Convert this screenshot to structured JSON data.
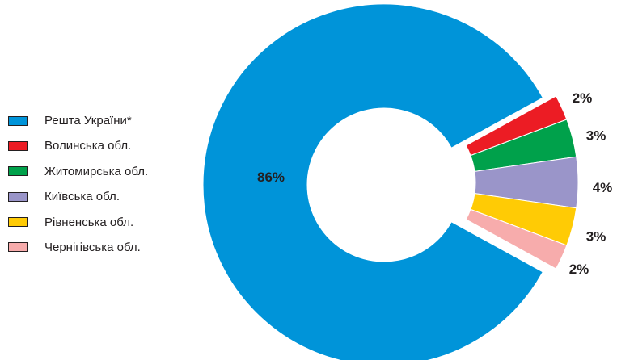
{
  "chart_data": {
    "type": "pie",
    "title": "",
    "categories": [
      "Решта України*",
      "Волинська обл.",
      "Житомирська обл.",
      "Київська обл.",
      "Рівненська обл.",
      "Чернігівська обл."
    ],
    "values": [
      86,
      2,
      3,
      4,
      3,
      2
    ],
    "labels": [
      "86%",
      "2%",
      "3%",
      "4%",
      "3%",
      "2%"
    ],
    "colors": [
      "#0094d9",
      "#ec1c24",
      "#00a14b",
      "#9a95c9",
      "#ffcb05",
      "#f7acac"
    ],
    "donut": true,
    "exploded_slices": [
      1,
      2,
      3,
      4,
      5
    ],
    "legend_position": "left"
  },
  "legend": [
    {
      "label": "Решта України*",
      "color": "#0094d9"
    },
    {
      "label": "Волинська обл.",
      "color": "#ec1c24"
    },
    {
      "label": "Житомирська обл.",
      "color": "#00a14b"
    },
    {
      "label": "Київська обл.",
      "color": "#9a95c9"
    },
    {
      "label": "Рівненська обл.",
      "color": "#ffcb05"
    },
    {
      "label": "Чернігівська обл.",
      "color": "#f7acac"
    }
  ]
}
